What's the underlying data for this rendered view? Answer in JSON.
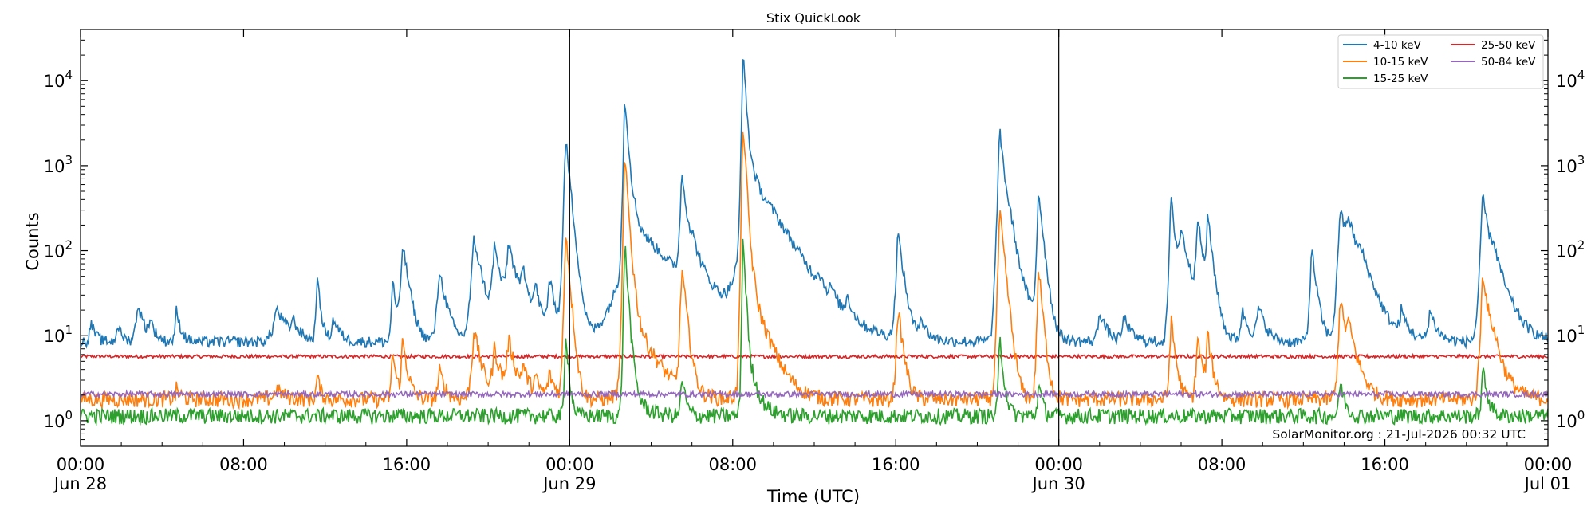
{
  "chart_data": {
    "type": "line",
    "title": "Stix QuickLook",
    "xlabel": "Time (UTC)",
    "ylabel": "Counts",
    "yscale": "log",
    "ylim": [
      0.5,
      40000
    ],
    "xlim_hours": [
      0,
      72
    ],
    "x_ticks": [
      {
        "hour": 0,
        "line1": "00:00",
        "line2": "Jun 28"
      },
      {
        "hour": 8,
        "line1": "08:00",
        "line2": ""
      },
      {
        "hour": 16,
        "line1": "16:00",
        "line2": ""
      },
      {
        "hour": 24,
        "line1": "00:00",
        "line2": "Jun 29"
      },
      {
        "hour": 32,
        "line1": "08:00",
        "line2": ""
      },
      {
        "hour": 40,
        "line1": "16:00",
        "line2": ""
      },
      {
        "hour": 48,
        "line1": "00:00",
        "line2": "Jun 30"
      },
      {
        "hour": 56,
        "line1": "08:00",
        "line2": ""
      },
      {
        "hour": 64,
        "line1": "16:00",
        "line2": ""
      },
      {
        "hour": 72,
        "line1": "00:00",
        "line2": "Jul 01"
      }
    ],
    "y_ticks": [
      {
        "value": 1,
        "base": "10",
        "exp": "0"
      },
      {
        "value": 10,
        "base": "10",
        "exp": "1"
      },
      {
        "value": 100,
        "base": "10",
        "exp": "2"
      },
      {
        "value": 1000,
        "base": "10",
        "exp": "3"
      },
      {
        "value": 10000,
        "base": "10",
        "exp": "4"
      }
    ],
    "day_boundaries_hours": [
      24,
      48
    ],
    "grid": false,
    "legend_position": "top-right",
    "annotation": "SolarMonitor.org : 21-Jul-2026 00:32 UTC",
    "series": [
      {
        "name": "4-10 keV",
        "color": "#1f77b4",
        "baseline": 8.5,
        "noise": 0.05,
        "peaks": [
          [
            0.5,
            15,
            0.2
          ],
          [
            1.8,
            14,
            0.2
          ],
          [
            2.8,
            24,
            0.3
          ],
          [
            3.4,
            15,
            0.2
          ],
          [
            4.7,
            20,
            0.2
          ],
          [
            9.6,
            21,
            0.5
          ],
          [
            10.4,
            14,
            0.3
          ],
          [
            11.6,
            50,
            0.15
          ],
          [
            12.4,
            16,
            0.3
          ],
          [
            15.3,
            50,
            0.15
          ],
          [
            15.8,
            120,
            0.25
          ],
          [
            17.6,
            60,
            0.3
          ],
          [
            19.3,
            140,
            0.35
          ],
          [
            20.3,
            110,
            0.3
          ],
          [
            21.0,
            120,
            0.35
          ],
          [
            21.7,
            55,
            0.3
          ],
          [
            22.3,
            35,
            0.25
          ],
          [
            23.0,
            45,
            0.3
          ],
          [
            23.8,
            2100,
            0.18
          ],
          [
            26.7,
            6500,
            0.14
          ],
          [
            27.2,
            200,
            1.6
          ],
          [
            29.5,
            800,
            0.2
          ],
          [
            30.0,
            80,
            0.6
          ],
          [
            32.5,
            22000,
            0.12
          ],
          [
            33.0,
            700,
            1.0
          ],
          [
            34.0,
            40,
            1.5
          ],
          [
            36.2,
            25,
            0.2
          ],
          [
            36.8,
            20,
            0.2
          ],
          [
            37.6,
            22,
            0.2
          ],
          [
            40.1,
            170,
            0.22
          ],
          [
            41.2,
            16,
            0.3
          ],
          [
            45.1,
            2600,
            0.2
          ],
          [
            45.6,
            120,
            0.5
          ],
          [
            47.0,
            520,
            0.18
          ],
          [
            50.0,
            20,
            0.3
          ],
          [
            51.2,
            17,
            0.3
          ],
          [
            53.5,
            430,
            0.18
          ],
          [
            54.0,
            160,
            0.4
          ],
          [
            54.8,
            250,
            0.2
          ],
          [
            55.3,
            240,
            0.2
          ],
          [
            57.0,
            20,
            0.3
          ],
          [
            57.8,
            22,
            0.3
          ],
          [
            60.4,
            110,
            0.2
          ],
          [
            61.8,
            320,
            0.25
          ],
          [
            62.2,
            200,
            0.5
          ],
          [
            62.8,
            50,
            0.6
          ],
          [
            64.8,
            18,
            0.3
          ],
          [
            66.2,
            20,
            0.3
          ],
          [
            68.8,
            450,
            0.25
          ],
          [
            69.3,
            80,
            0.6
          ]
        ]
      },
      {
        "name": "10-15 keV",
        "color": "#ff7f0e",
        "baseline": 1.8,
        "noise": 0.07,
        "peaks": [
          [
            4.7,
            2.4,
            0.2
          ],
          [
            9.6,
            2.4,
            0.4
          ],
          [
            11.6,
            3.5,
            0.15
          ],
          [
            15.3,
            7,
            0.15
          ],
          [
            15.8,
            9,
            0.2
          ],
          [
            17.6,
            4,
            0.25
          ],
          [
            19.3,
            12,
            0.3
          ],
          [
            20.3,
            7,
            0.3
          ],
          [
            21.0,
            9,
            0.3
          ],
          [
            21.7,
            4,
            0.3
          ],
          [
            22.3,
            3,
            0.25
          ],
          [
            23.0,
            3.5,
            0.3
          ],
          [
            23.8,
            180,
            0.15
          ],
          [
            26.7,
            1300,
            0.13
          ],
          [
            27.2,
            15,
            0.8
          ],
          [
            29.5,
            65,
            0.18
          ],
          [
            32.5,
            3400,
            0.11
          ],
          [
            33.0,
            30,
            0.6
          ],
          [
            40.1,
            22,
            0.2
          ],
          [
            45.1,
            290,
            0.18
          ],
          [
            47.0,
            65,
            0.16
          ],
          [
            53.5,
            16,
            0.18
          ],
          [
            54.8,
            10,
            0.2
          ],
          [
            55.3,
            10,
            0.2
          ],
          [
            61.8,
            30,
            0.2
          ],
          [
            62.2,
            12,
            0.4
          ],
          [
            68.8,
            60,
            0.22
          ],
          [
            69.3,
            8,
            0.5
          ]
        ]
      },
      {
        "name": "15-25 keV",
        "color": "#2ca02c",
        "baseline": 1.15,
        "noise": 0.07,
        "peaks": [
          [
            23.8,
            12,
            0.12
          ],
          [
            26.7,
            130,
            0.12
          ],
          [
            27.2,
            2,
            0.5
          ],
          [
            29.5,
            3.5,
            0.15
          ],
          [
            32.5,
            150,
            0.1
          ],
          [
            33.0,
            3,
            0.4
          ],
          [
            45.1,
            10,
            0.15
          ],
          [
            47.0,
            3,
            0.15
          ],
          [
            61.8,
            3,
            0.2
          ],
          [
            68.8,
            4,
            0.2
          ]
        ]
      },
      {
        "name": "25-50 keV",
        "color": "#d62728",
        "baseline": 5.7,
        "noise": 0.015,
        "peaks": []
      },
      {
        "name": "50-84 keV",
        "color": "#9467bd",
        "baseline": 2.05,
        "noise": 0.025,
        "peaks": []
      }
    ]
  }
}
